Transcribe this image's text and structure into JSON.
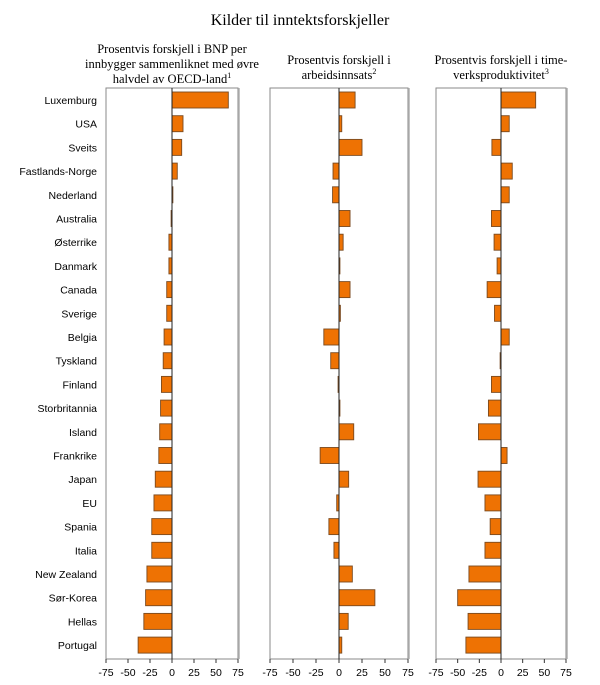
{
  "chart_data": {
    "type": "bar",
    "orientation": "horizontal",
    "title": "Kilder til inntektsforskjeller",
    "categories": [
      "Luxemburg",
      "USA",
      "Sveits",
      "Fastlands-Norge",
      "Nederland",
      "Australia",
      "Østerrike",
      "Danmark",
      "Canada",
      "Sverige",
      "Belgia",
      "Tyskland",
      "Finland",
      "Storbritannia",
      "Island",
      "Frankrike",
      "Japan",
      "EU",
      "Spania",
      "Italia",
      "New Zealand",
      "Sør-Korea",
      "Hellas",
      "Portugal"
    ],
    "colors": {
      "bar": "#ee7203",
      "bar_stroke": "#7a4a20",
      "frame": "#8a8a8a"
    },
    "panels": [
      {
        "title_lines": [
          "Prosentvis forskjell i BNP per",
          "innbygger sammenliknet med øvre",
          "halvdel av OECD-land"
        ],
        "footnote": "1",
        "xlim": [
          -75,
          75
        ],
        "xticks": [
          -75,
          -50,
          -25,
          0,
          25,
          50,
          75
        ],
        "values": [
          64,
          12.5,
          11,
          6,
          1,
          -1,
          -3.5,
          -3.5,
          -6,
          -6,
          -9,
          -10,
          -12,
          -13,
          -14,
          -15,
          -19,
          -20.5,
          -23,
          -23,
          -28.5,
          -30,
          -32,
          -38.5
        ]
      },
      {
        "title_lines": [
          "Prosentvis forskjell i",
          "arbeidsinnsats"
        ],
        "footnote": "2",
        "xlim": [
          -75,
          75
        ],
        "xticks": [
          -75,
          -50,
          -25,
          0,
          25,
          50,
          75
        ],
        "values": [
          17.5,
          3,
          25,
          -6.5,
          -7,
          12,
          4.5,
          1,
          12,
          1.5,
          -16.5,
          -9,
          -1,
          1,
          16,
          -20.5,
          10.5,
          -2.5,
          -11,
          -5.5,
          14.5,
          39,
          10,
          3
        ]
      },
      {
        "title_lines": [
          "Prosentvis forskjell i time-",
          "verksproduktivitet"
        ],
        "footnote": "3",
        "xlim": [
          -75,
          75
        ],
        "xticks": [
          -75,
          -50,
          -25,
          0,
          25,
          50,
          75
        ],
        "values": [
          40,
          9.5,
          -10.5,
          13,
          9.5,
          -11,
          -8,
          -4.5,
          -16,
          -7.5,
          9.5,
          -1,
          -11,
          -14.5,
          -26,
          7,
          -26.5,
          -18.5,
          -12.5,
          -18.5,
          -37,
          -50,
          -38,
          -40.5
        ]
      }
    ]
  }
}
